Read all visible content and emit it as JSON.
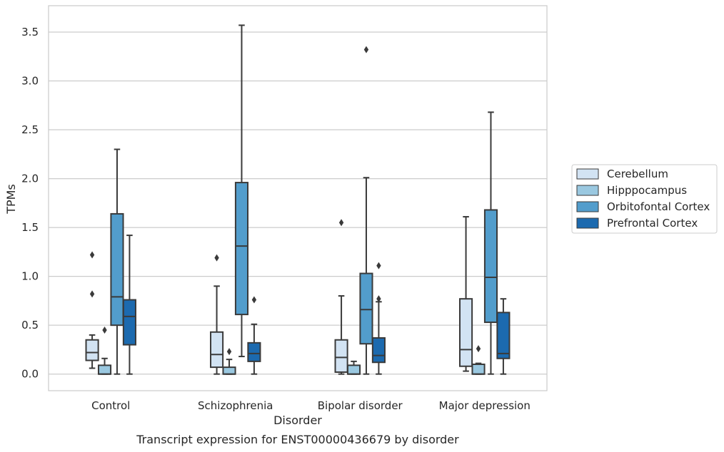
{
  "chart_data": {
    "type": "box",
    "caption": "Transcript expression for ENST00000436679 by disorder",
    "xlabel": "Disorder",
    "ylabel": "TPMs",
    "ylim": [
      -0.17,
      3.77
    ],
    "yticks": [
      0.0,
      0.5,
      1.0,
      1.5,
      2.0,
      2.5,
      3.0,
      3.5
    ],
    "ytick_labels": [
      "0.0",
      "0.5",
      "1.0",
      "1.5",
      "2.0",
      "2.5",
      "3.0",
      "3.5"
    ],
    "grid": "horizontal",
    "legend_position": "right",
    "categories": [
      "Control",
      "Schizophrenia",
      "Bipolar disorder",
      "Major depression"
    ],
    "series": [
      {
        "name": "Cerebellum",
        "color": "#d2e3f3",
        "boxes": [
          {
            "whislo": 0.06,
            "q1": 0.14,
            "med": 0.22,
            "q3": 0.35,
            "whishi": 0.4,
            "fliers": [
              0.82,
              1.22
            ]
          },
          {
            "whislo": 0.0,
            "q1": 0.07,
            "med": 0.2,
            "q3": 0.43,
            "whishi": 0.9,
            "fliers": [
              1.19
            ]
          },
          {
            "whislo": 0.0,
            "q1": 0.02,
            "med": 0.17,
            "q3": 0.35,
            "whishi": 0.8,
            "fliers": [
              1.55
            ]
          },
          {
            "whislo": 0.03,
            "q1": 0.08,
            "med": 0.25,
            "q3": 0.77,
            "whishi": 1.61,
            "fliers": []
          }
        ]
      },
      {
        "name": "Hipppocampus",
        "color": "#9ac8e0",
        "boxes": [
          {
            "whislo": 0.0,
            "q1": 0.0,
            "med": 0.0,
            "q3": 0.09,
            "whishi": 0.16,
            "fliers": [
              0.45
            ]
          },
          {
            "whislo": 0.0,
            "q1": 0.0,
            "med": 0.0,
            "q3": 0.07,
            "whishi": 0.15,
            "fliers": [
              0.23
            ]
          },
          {
            "whislo": 0.0,
            "q1": 0.0,
            "med": 0.0,
            "q3": 0.09,
            "whishi": 0.13,
            "fliers": []
          },
          {
            "whislo": 0.0,
            "q1": 0.0,
            "med": 0.0,
            "q3": 0.1,
            "whishi": 0.11,
            "fliers": [
              0.26
            ]
          }
        ]
      },
      {
        "name": "Orbitofontal Cortex",
        "color": "#529dcc",
        "boxes": [
          {
            "whislo": 0.0,
            "q1": 0.5,
            "med": 0.79,
            "q3": 1.64,
            "whishi": 2.3,
            "fliers": []
          },
          {
            "whislo": 0.18,
            "q1": 0.61,
            "med": 1.31,
            "q3": 1.96,
            "whishi": 3.57,
            "fliers": []
          },
          {
            "whislo": 0.0,
            "q1": 0.31,
            "med": 0.66,
            "q3": 1.03,
            "whishi": 2.01,
            "fliers": [
              3.32
            ]
          },
          {
            "whislo": 0.0,
            "q1": 0.53,
            "med": 0.99,
            "q3": 1.68,
            "whishi": 2.68,
            "fliers": []
          }
        ]
      },
      {
        "name": "Prefrontal Cortex",
        "color": "#1c6aaf",
        "boxes": [
          {
            "whislo": 0.0,
            "q1": 0.3,
            "med": 0.59,
            "q3": 0.76,
            "whishi": 1.42,
            "fliers": []
          },
          {
            "whislo": 0.0,
            "q1": 0.13,
            "med": 0.21,
            "q3": 0.32,
            "whishi": 0.51,
            "fliers": [
              0.76
            ]
          },
          {
            "whislo": 0.0,
            "q1": 0.12,
            "med": 0.19,
            "q3": 0.37,
            "whishi": 0.74,
            "fliers": [
              0.77,
              1.11
            ]
          },
          {
            "whislo": 0.0,
            "q1": 0.16,
            "med": 0.21,
            "q3": 0.63,
            "whishi": 0.77,
            "fliers": []
          }
        ]
      }
    ]
  }
}
